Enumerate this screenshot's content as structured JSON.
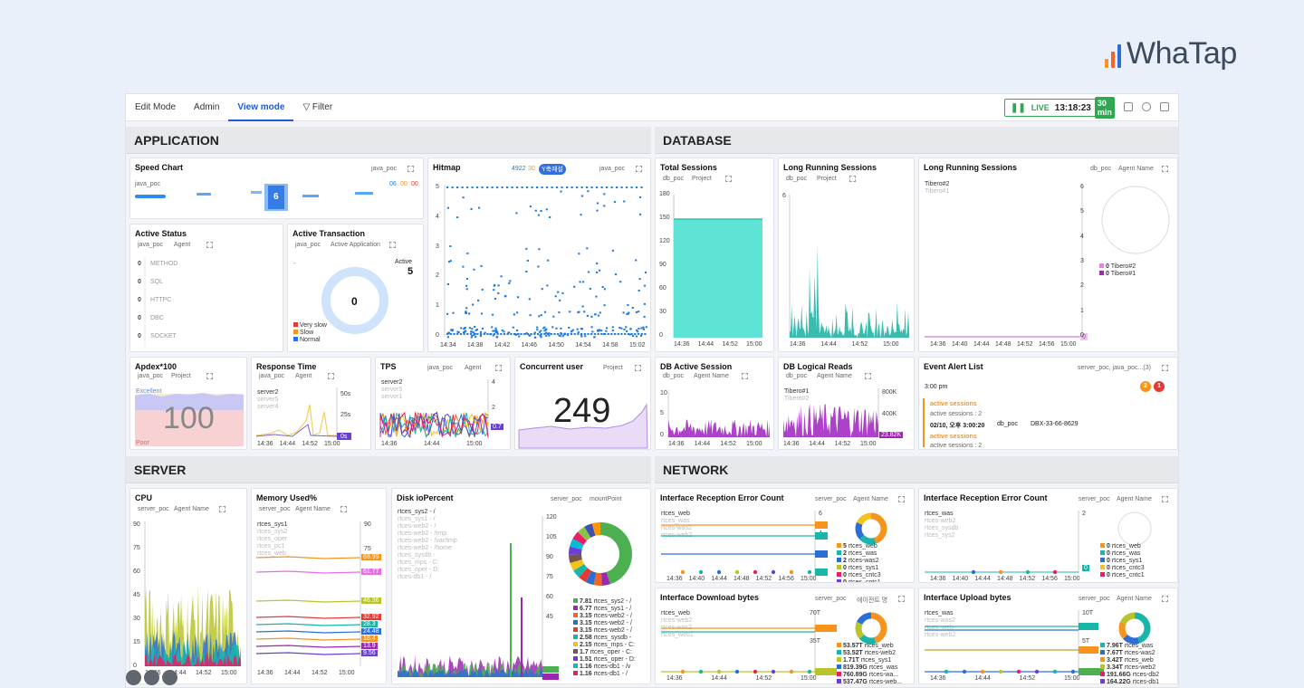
{
  "brand": {
    "name": "WhaTap",
    "bars": [
      "#f7941d",
      "#f26522",
      "#2b6fd6",
      "#3b4a5e"
    ]
  },
  "topbar": {
    "tabs": [
      "Edit Mode",
      "Admin",
      "View mode"
    ],
    "filter": "Filter",
    "live_label": "LIVE",
    "time": "13:18:23",
    "duration": "30 min"
  },
  "sections": {
    "application": "APPLICATION",
    "database": "DATABASE",
    "server": "SERVER",
    "network": "NETWORK"
  },
  "speed": {
    "title": "Speed Chart",
    "project": "java_poc",
    "label": "java_poc",
    "count": "6",
    "legend": [
      "06",
      "00",
      "00"
    ]
  },
  "hitmap": {
    "title": "Hitmap",
    "count": "4922",
    "count2": "30",
    "badge": "Y축재설",
    "project": "java_poc",
    "yticks": [
      "5",
      "4",
      "3",
      "2",
      "1",
      "0"
    ],
    "xticks": [
      "14:34",
      "14:38",
      "14:42",
      "14:46",
      "14:50",
      "14:54",
      "14:58",
      "15:02"
    ]
  },
  "active_status": {
    "title": "Active Status",
    "m1": "java_poc",
    "m2": "Agent",
    "rows": [
      {
        "v": "0",
        "l": "METHOD"
      },
      {
        "v": "0",
        "l": "SQL"
      },
      {
        "v": "0",
        "l": "HTTPC"
      },
      {
        "v": "0",
        "l": "DBC"
      },
      {
        "v": "0",
        "l": "SOCKET"
      }
    ]
  },
  "active_tx": {
    "title": "Active Transaction",
    "m1": "java_poc",
    "m2": "Active Application",
    "dash": "-",
    "active_label": "Active",
    "active_value": "5",
    "center": "0",
    "legend": [
      "Very slow",
      "Slow",
      "Normal"
    ]
  },
  "apdex": {
    "title": "Apdex*100",
    "m1": "java_poc",
    "m2": "Project",
    "value": "100",
    "good": "Excellent",
    "poor": "Poor"
  },
  "resp": {
    "title": "Response Time",
    "m1": "java_poc",
    "m2": "Agent",
    "servers": [
      "server2",
      "server5",
      "server4"
    ],
    "y": [
      "50s",
      "25s"
    ],
    "badge": "0s",
    "xticks": [
      "14:36",
      "14:44",
      "14:52",
      "15:00"
    ]
  },
  "tps": {
    "title": "TPS",
    "m1": "java_poc",
    "m2": "Agent",
    "servers": [
      "server2",
      "server5",
      "server1"
    ],
    "y": [
      "4",
      "2"
    ],
    "badges": [
      "0.7"
    ],
    "xticks": [
      "14:36",
      "14:44",
      "15:00"
    ]
  },
  "concurrent": {
    "title": "Concurrent user",
    "m": "Project",
    "value": "249"
  },
  "total_sessions": {
    "title": "Total Sessions",
    "m1": "db_poc",
    "m2": "Project",
    "y": [
      "180",
      "150",
      "120",
      "90",
      "60",
      "30",
      "0"
    ],
    "xticks": [
      "14:36",
      "14:44",
      "14:52",
      "15:00"
    ]
  },
  "lrs1": {
    "title": "Long Running Sessions",
    "m1": "db_poc",
    "m2": "Project",
    "y": [
      "6"
    ],
    "xticks": [
      "14:36",
      "14:44",
      "14:52",
      "15:00"
    ]
  },
  "lrs2": {
    "title": "Long Running Sessions",
    "m1": "db_poc",
    "m2": "Agent Name",
    "items": [
      "Tibero#2",
      "Tibero#1"
    ],
    "y": [
      "6",
      "5",
      "4",
      "3",
      "2",
      "1",
      "0"
    ],
    "legend": [
      {
        "v": "0",
        "l": "Tibero#2"
      },
      {
        "v": "0",
        "l": "Tibero#1"
      }
    ],
    "xticks": [
      "14:36",
      "14:40",
      "14:44",
      "14:48",
      "14:52",
      "14:56",
      "15:00"
    ],
    "badge": "0"
  },
  "db_active": {
    "title": "DB Active Session",
    "m1": "db_poc",
    "m2": "Agent Name",
    "y": [
      "10",
      "5",
      "0"
    ],
    "xticks": [
      "14:36",
      "14:44",
      "14:52",
      "15:00"
    ]
  },
  "db_logical": {
    "title": "DB Logical Reads",
    "m1": "db_poc",
    "m2": "Agent Name",
    "items": [
      "Tibero#1",
      "Tibero#2"
    ],
    "y": [
      "800K",
      "400K"
    ],
    "badge": "23.82K",
    "xticks": [
      "14:36",
      "14:44",
      "14:52",
      "15:00"
    ]
  },
  "event": {
    "title": "Event Alert List",
    "m": "server_poc, java_poc...(3)",
    "time": "3:00 pm",
    "c1": "2",
    "c2": "1",
    "e1_title": "active sessions",
    "e1_line": "active sessions : 2",
    "e1_date": "02/10, 오후 3:00:20",
    "e1_db": "db_poc",
    "e1_id": "DBX-33-66-8629",
    "e2_title": "active sessions",
    "e2_line": "active sessions : 2"
  },
  "cpu": {
    "title": "CPU",
    "m1": "server_poc",
    "m2": "Agent Name",
    "y": [
      "90",
      "75",
      "60",
      "45",
      "30",
      "15",
      "0"
    ],
    "xticks": [
      "14:36",
      "14:44",
      "14:52",
      "15:00"
    ]
  },
  "mem": {
    "title": "Memory Used%",
    "m1": "server_poc",
    "m2": "Agent Name",
    "items": [
      "rtces_sys1",
      "rtces_sys2",
      "rtces_oper",
      "rtces_pc1",
      "rtces_web"
    ],
    "y": [
      "90",
      "75"
    ],
    "badges": [
      "68.99",
      "61.77",
      "46.36",
      "32.92",
      "28.3",
      "24.48",
      "18.4",
      "13.9",
      "9.56"
    ],
    "xticks": [
      "14:36",
      "14:44",
      "14:52",
      "15:00"
    ]
  },
  "disk": {
    "title": "Disk ioPercent",
    "m1": "server_poc",
    "m2": "mountPoint",
    "items": [
      "rtces_sys2 - /",
      "rtces_sys1 - /",
      "rtces-web2 - /",
      "rtces-web2 - /tmp",
      "rtces-web2 - /var/tmp",
      "rtces-web2 - /home",
      "rtces_sysdb -",
      "rtces_mps - C:",
      "rtces_oper - D:",
      "rtces-db1 - /"
    ],
    "y": [
      "120",
      "105",
      "90",
      "75",
      "60",
      "45"
    ],
    "legend": [
      {
        "v": "7.81",
        "l": "rtces_sys2 - /"
      },
      {
        "v": "6.77",
        "l": "rtces_sys1 - /"
      },
      {
        "v": "3.15",
        "l": "rtces-web2 - /"
      },
      {
        "v": "3.15",
        "l": "rtces-web2 - /"
      },
      {
        "v": "3.15",
        "l": "rtces-web2 - /"
      },
      {
        "v": "2.58",
        "l": "rtces_sysdb -"
      },
      {
        "v": "2.15",
        "l": "rtces_mps - C:"
      },
      {
        "v": "1.7",
        "l": "rtces_oper - C:"
      },
      {
        "v": "1.51",
        "l": "rtces_oper - D:"
      },
      {
        "v": "1.16",
        "l": "rtces-db1 - /v"
      },
      {
        "v": "1.16",
        "l": "rtces-db1 - /"
      }
    ],
    "badges": [
      "7.81",
      "6.77"
    ]
  },
  "ifrec1": {
    "title": "Interface Reception Error Count",
    "m1": "server_poc",
    "m2": "Agent Name",
    "items": [
      "rtces_web",
      "rtces_was",
      "rtces-was2",
      "rtces-web2"
    ],
    "y": [
      "6",
      "4"
    ],
    "legend": [
      {
        "v": "5",
        "l": "rtces_web"
      },
      {
        "v": "2",
        "l": "rtces_was"
      },
      {
        "v": "2",
        "l": "rtces-was2"
      },
      {
        "v": "0",
        "l": "rtces_sys1"
      },
      {
        "v": "0",
        "l": "rtces_cntc3"
      },
      {
        "v": "0",
        "l": "rtces_cntc1"
      }
    ],
    "badges": [
      "5",
      "3",
      "2",
      "0"
    ],
    "xticks": [
      "14:36",
      "14:40",
      "14:44",
      "14:48",
      "14:52",
      "14:56",
      "15:00"
    ]
  },
  "ifrec2": {
    "title": "Interface Reception Error Count",
    "m1": "server_poc",
    "m2": "Agent Name",
    "items": [
      "rtces_was",
      "rtces-web2",
      "rtces_sysdb",
      "rtces_sys2"
    ],
    "y": [
      "2"
    ],
    "legend": [
      {
        "v": "0",
        "l": "rtces_web"
      },
      {
        "v": "0",
        "l": "rtces_was"
      },
      {
        "v": "0",
        "l": "rtces_sys1"
      },
      {
        "v": "0",
        "l": "rtces_cntc3"
      },
      {
        "v": "0",
        "l": "rtces_cntc1"
      }
    ],
    "badge": "0",
    "xticks": [
      "14:36",
      "14:40",
      "14:44",
      "14:48",
      "14:52",
      "14:56",
      "15:00"
    ]
  },
  "ifdown": {
    "title": "Interface Download bytes",
    "m1": "server_poc",
    "m2": "에이전트 명",
    "items": [
      "rtces_web",
      "rtces-web2",
      "rtces-was2",
      "rtces_web1"
    ],
    "y": [
      "70T",
      "35T"
    ],
    "legend": [
      {
        "v": "53.57T",
        "l": "rtces_web"
      },
      {
        "v": "53.52T",
        "l": "rtces-web2"
      },
      {
        "v": "1.71T",
        "l": "rtces_sys1"
      },
      {
        "v": "819.39G",
        "l": "rtces_was"
      },
      {
        "v": "760.89G",
        "l": "rtces-wa..."
      },
      {
        "v": "537.47G",
        "l": "rtces-web..."
      }
    ],
    "badges": [
      "53.57T",
      "1.71T"
    ],
    "xticks": [
      "14:36",
      "14:44",
      "14:52",
      "15:00"
    ]
  },
  "ifup": {
    "title": "Interface Upload bytes",
    "m1": "server_poc",
    "m2": "Agent Name",
    "items": [
      "rtces_was",
      "rtces-was2",
      "rtces_web",
      "rtces-web2"
    ],
    "y": [
      "10T",
      "5T"
    ],
    "legend": [
      {
        "v": "7.96T",
        "l": "rtces_was"
      },
      {
        "v": "7.67T",
        "l": "rtces-was2"
      },
      {
        "v": "3.42T",
        "l": "rtces_web"
      },
      {
        "v": "3.34T",
        "l": "rtces-web2"
      },
      {
        "v": "191.66G",
        "l": "rtces-db2"
      },
      {
        "v": "164.22G",
        "l": "rtces-db1"
      }
    ],
    "badges": [
      "7.96T",
      "3.42T",
      "191.66G"
    ],
    "xticks": [
      "14:36",
      "14:44",
      "14:52",
      "15:00"
    ]
  }
}
